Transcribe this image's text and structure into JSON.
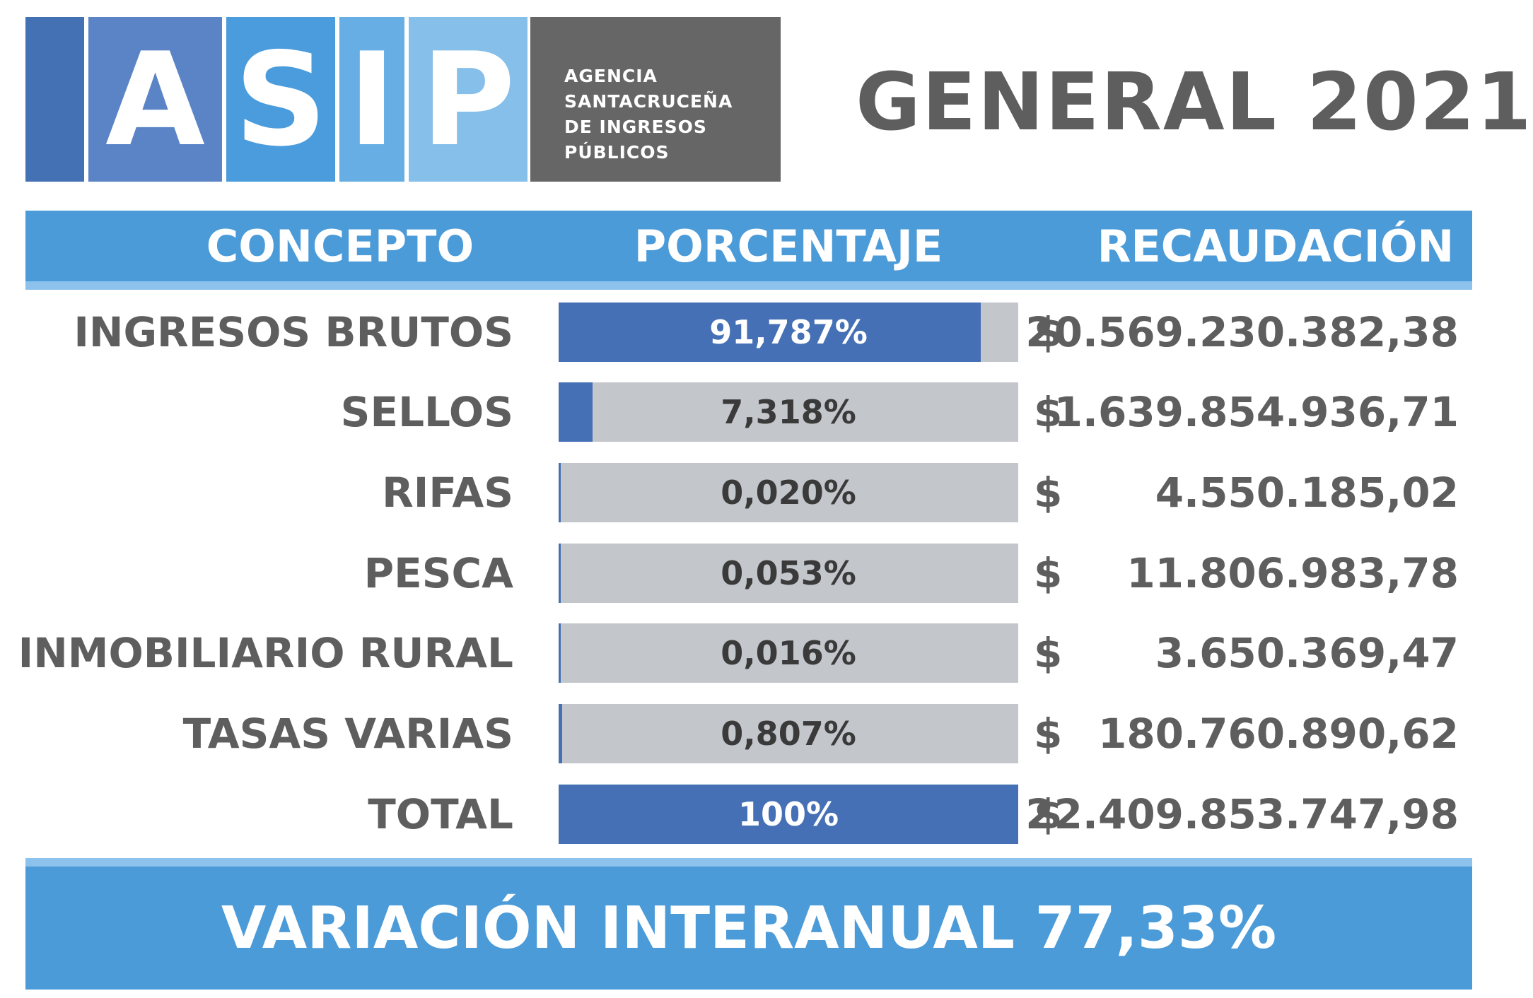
{
  "logo": {
    "letters": [
      "A",
      "S",
      "I",
      "P"
    ],
    "text_lines": [
      "AGENCIA",
      "SANTACRUCEÑA",
      "DE INGRESOS",
      "PÚBLICOS"
    ]
  },
  "title": "GENERAL 2021",
  "table": {
    "headers": {
      "concept": "CONCEPTO",
      "percentage": "PORCENTAJE",
      "collection": "RECAUDACIÓN"
    },
    "currency_symbol": "$",
    "rows": [
      {
        "concept": "INGRESOS BRUTOS",
        "percentage_label": "91,787%",
        "share": 0.91787,
        "amount": "20.569.230.382,38"
      },
      {
        "concept": "SELLOS",
        "percentage_label": "7,318%",
        "share": 0.07318,
        "amount": "1.639.854.936,71"
      },
      {
        "concept": "RIFAS",
        "percentage_label": "0,020%",
        "share": 0.0002,
        "amount": "4.550.185,02"
      },
      {
        "concept": "PESCA",
        "percentage_label": "0,053%",
        "share": 0.00053,
        "amount": "11.806.983,78"
      },
      {
        "concept": "INMOBILIARIO RURAL",
        "percentage_label": "0,016%",
        "share": 0.00016,
        "amount": "3.650.369,47"
      },
      {
        "concept": "TASAS VARIAS",
        "percentage_label": "0,807%",
        "share": 0.00807,
        "amount": "180.760.890,62"
      },
      {
        "concept": "TOTAL",
        "percentage_label": "100%",
        "share": 1.0,
        "amount": "22.409.853.747,98"
      }
    ]
  },
  "footer": "VARIACIÓN INTERANUAL 77,33%",
  "colors": {
    "logo_blues": [
      "#4470b4",
      "#5b84c6",
      "#4a9cdc",
      "#66aee3",
      "#86bfea"
    ],
    "logo_gray": "#666666",
    "band_blue": "#4b9bd9",
    "band_light": "#8cc2ec",
    "bar_fill": "#4570b5",
    "bar_track": "#c3c6cb",
    "text_gray": "#5e5e5e"
  }
}
